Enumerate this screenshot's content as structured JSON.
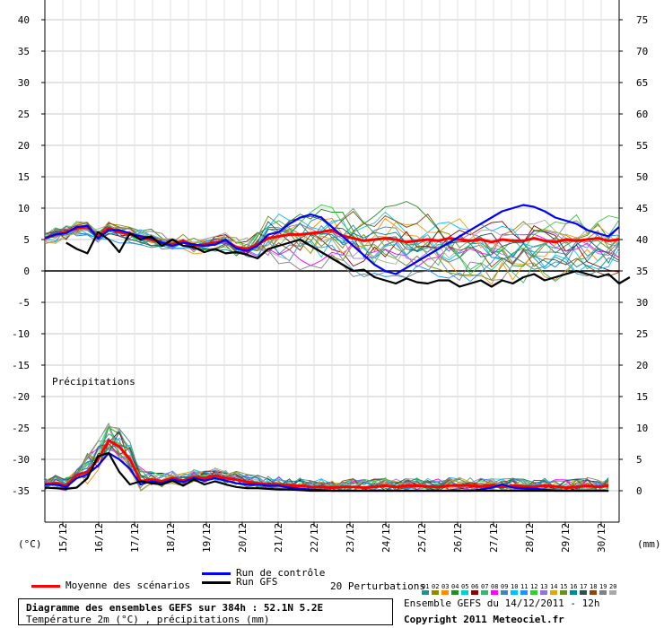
{
  "chart_data": {
    "type": "line",
    "title": "Diagramme des ensembles GEFS sur 384h : 52.1N 5.2E",
    "subtitle": "Température 2m (°C) , précipitations (mm)",
    "left_axis": {
      "label": "(°C)",
      "ticks": [
        40,
        35,
        30,
        25,
        20,
        15,
        10,
        5,
        0,
        -5,
        -10,
        -15,
        -20,
        -25,
        -30,
        -35
      ],
      "ylim": [
        -35,
        40
      ]
    },
    "right_axis": {
      "label": "(mm)",
      "ticks": [
        75,
        70,
        65,
        60,
        55,
        50,
        45,
        40,
        35,
        30,
        25,
        20,
        15,
        10,
        5,
        0
      ],
      "ylim": [
        0,
        75
      ]
    },
    "x_ticks": [
      "15/12",
      "16/12",
      "17/12",
      "18/12",
      "19/12",
      "20/12",
      "21/12",
      "22/12",
      "23/12",
      "24/12",
      "25/12",
      "26/12",
      "27/12",
      "28/12",
      "29/12",
      "30/12"
    ],
    "x_range_hours": [
      0,
      384
    ],
    "precip_label": "Précipitations",
    "grid": true,
    "series": [
      {
        "name": "Moyenne des scénarios",
        "role": "temp_mean",
        "color": "#ff0000",
        "values": [
          5.2,
          5.8,
          6.2,
          6.8,
          7.0,
          5.5,
          6.8,
          6.2,
          5.8,
          5.5,
          5.0,
          4.5,
          4.2,
          4.8,
          4.0,
          4.2,
          4.5,
          4.8,
          3.8,
          3.5,
          4.2,
          5.2,
          5.5,
          5.8,
          5.8,
          6.0,
          6.2,
          6.5,
          5.6,
          5.2,
          4.8,
          5.0,
          5.2,
          5.0,
          4.6,
          4.8,
          5.0,
          4.8,
          5.2,
          5.0,
          4.8,
          5.0,
          4.6,
          5.0,
          4.8,
          4.8,
          5.2,
          4.8,
          4.6,
          5.0,
          4.8,
          5.0,
          5.2,
          4.8,
          5.0
        ]
      },
      {
        "name": "Run de contrôle",
        "role": "temp_control",
        "color": "#0000ff",
        "values": [
          5.2,
          5.8,
          6.0,
          7.0,
          7.2,
          5.2,
          6.5,
          6.5,
          6.0,
          5.5,
          5.2,
          4.5,
          4.0,
          4.5,
          4.2,
          4.0,
          4.2,
          5.0,
          3.6,
          3.2,
          4.0,
          5.8,
          6.2,
          7.5,
          8.5,
          9.0,
          8.5,
          7.0,
          5.5,
          4.0,
          2.5,
          1.0,
          0.0,
          -0.5,
          0.5,
          1.5,
          2.5,
          3.5,
          4.5,
          5.5,
          6.5,
          7.5,
          8.5,
          9.5,
          10.0,
          10.5,
          10.2,
          9.5,
          8.5,
          8.0,
          7.5,
          6.5,
          6.0,
          5.5,
          7.0
        ]
      },
      {
        "name": "Run GFS",
        "role": "temp_gfs",
        "color": "#000000",
        "start_index": 2,
        "values": [
          4.5,
          3.5,
          2.8,
          6.2,
          5.0,
          3.0,
          6.0,
          5.0,
          5.5,
          4.0,
          5.0,
          4.0,
          3.8,
          3.0,
          3.5,
          2.8,
          3.0,
          2.6,
          2.0,
          3.5,
          4.0,
          4.5,
          5.0,
          4.0,
          3.0,
          2.0,
          1.0,
          0.0,
          0.2,
          -1.0,
          -1.5,
          -2.0,
          -1.2,
          -1.8,
          -2.0,
          -1.5,
          -1.5,
          -2.5,
          -2.0,
          -1.5,
          -2.5,
          -1.5,
          -2.0,
          -1.0,
          -0.5,
          -1.5,
          -1.0,
          -0.5,
          0.0,
          -0.5,
          -1.0,
          -0.5,
          -2.0,
          -1.0
        ]
      },
      {
        "name": "Moyenne des scénarios",
        "role": "precip_mean",
        "color": "#ff0000",
        "values": [
          1.0,
          1.2,
          0.8,
          2.5,
          3.0,
          5.0,
          8.0,
          7.0,
          5.0,
          1.5,
          1.8,
          1.5,
          2.0,
          1.6,
          2.2,
          2.0,
          2.4,
          2.0,
          1.8,
          1.4,
          1.2,
          1.0,
          1.0,
          0.8,
          0.8,
          0.6,
          0.6,
          0.5,
          0.6,
          0.6,
          0.5,
          0.6,
          0.8,
          0.6,
          0.8,
          0.8,
          0.7,
          0.6,
          0.8,
          0.9,
          0.8,
          0.7,
          0.8,
          0.6,
          0.8,
          0.7,
          0.6,
          0.8,
          0.7,
          0.5,
          0.6,
          0.8,
          0.6,
          0.8
        ]
      },
      {
        "name": "Run de contrôle",
        "role": "precip_control",
        "color": "#0000ff",
        "values": [
          1.0,
          1.0,
          0.6,
          2.0,
          2.6,
          4.0,
          6.0,
          5.0,
          3.5,
          1.0,
          1.5,
          1.2,
          1.8,
          1.4,
          2.0,
          1.6,
          2.0,
          1.6,
          1.2,
          1.0,
          1.0,
          0.8,
          0.8,
          0.5,
          0.3,
          0.2,
          0.1,
          0.0,
          0.0,
          0.0,
          0.0,
          0.0,
          0.0,
          0.0,
          0.0,
          0.0,
          0.0,
          0.0,
          0.0,
          0.0,
          0.0,
          0.2,
          0.5,
          1.0,
          0.5,
          0.4,
          0.3,
          0.2,
          0.0,
          0.0,
          0.0,
          0.0,
          0.0,
          0.0
        ]
      },
      {
        "name": "Run GFS",
        "role": "precip_gfs",
        "color": "#000000",
        "values": [
          0.5,
          0.4,
          0.3,
          0.5,
          2.0,
          5.5,
          6.0,
          3.0,
          1.0,
          1.5,
          1.2,
          1.0,
          1.6,
          0.8,
          1.8,
          1.0,
          1.5,
          1.0,
          0.6,
          0.4,
          0.4,
          0.3,
          0.2,
          0.2,
          0.1,
          0.0,
          0.0,
          0.0,
          0.0,
          0.0,
          0.0,
          0.0,
          0.0,
          0.0,
          0.0,
          0.0,
          0.0,
          0.0,
          0.0,
          0.0,
          0.0,
          0.0,
          0.0,
          0.0,
          0.0,
          0.0,
          0.0,
          0.0,
          0.0,
          0.0,
          0.0,
          0.0,
          0.0,
          0.0
        ]
      }
    ],
    "perturbations": {
      "label": "20 Perturbations",
      "codes": [
        "01",
        "02",
        "03",
        "04",
        "05",
        "06",
        "07",
        "08",
        "09",
        "10",
        "11",
        "12",
        "13",
        "14",
        "15",
        "16",
        "17",
        "18",
        "19",
        "20"
      ],
      "colors": [
        "#2e8b8b",
        "#8b8b00",
        "#ff8c00",
        "#228b22",
        "#00ced1",
        "#8b0000",
        "#3cb371",
        "#ff00ff",
        "#4682b4",
        "#00bfff",
        "#1e90ff",
        "#32cd32",
        "#9370db",
        "#daa520",
        "#6b8e23",
        "#008b8b",
        "#2f4f4f",
        "#8b4513",
        "#808080",
        "#a9a9a9"
      ]
    }
  },
  "legend": {
    "mean_label": "Moyenne des scénarios",
    "control_label": "Run de contrôle",
    "gfs_label": "Run GFS"
  },
  "info": {
    "title": "Diagramme des ensembles GEFS sur 384h : 52.1N 5.2E",
    "subtitle": "Température 2m (°C) , précipitations (mm)",
    "ensemble": "Ensemble GEFS du 14/12/2011 - 12h",
    "copyright": "Copyright 2011 Meteociel.fr"
  }
}
